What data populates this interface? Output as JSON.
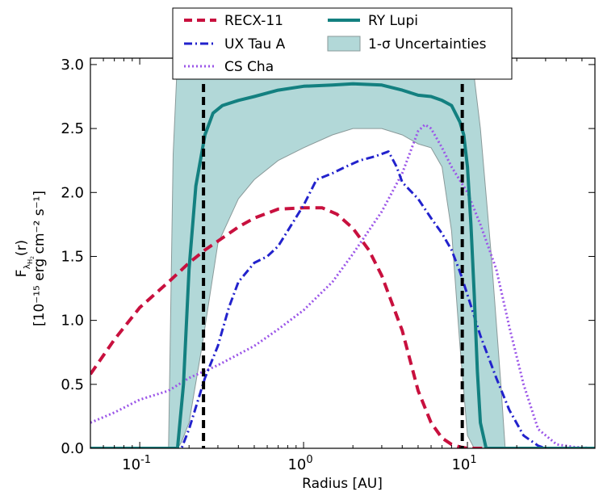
{
  "chart_data": {
    "type": "line",
    "xscale": "log",
    "xlim": [
      0.05,
      60
    ],
    "ylim": [
      0.0,
      3.05
    ],
    "xlabel": "Radius [AU]",
    "ylabel_line1": "F",
    "ylabel_sub": "λ",
    "ylabel_subsub": "H",
    "ylabel_subsubsub": "2",
    "ylabel_line1_tail": "(r)",
    "ylabel_line2": "[10⁻¹⁵ erg cm⁻² s⁻¹]",
    "xticks": [
      {
        "value": 0.1,
        "base": "10",
        "exp": "-1"
      },
      {
        "value": 1,
        "base": "10",
        "exp": "0"
      },
      {
        "value": 10,
        "base": "10",
        "exp": "1"
      }
    ],
    "yticks": [
      {
        "value": 0.0,
        "label": "0.0"
      },
      {
        "value": 0.5,
        "label": "0.5"
      },
      {
        "value": 1.0,
        "label": "1.0"
      },
      {
        "value": 1.5,
        "label": "1.5"
      },
      {
        "value": 2.0,
        "label": "2.0"
      },
      {
        "value": 2.5,
        "label": "2.5"
      },
      {
        "value": 3.0,
        "label": "3.0"
      }
    ],
    "band": {
      "name": "1-σ Uncertainties",
      "color": "#b2d8d8",
      "edge_color": "#8a9a9a",
      "x": [
        0.15,
        0.16,
        0.17,
        0.18,
        0.2,
        0.24,
        0.3,
        0.4,
        0.5,
        0.7,
        1.0,
        1.5,
        2.0,
        3.0,
        4.0,
        5.0,
        6.0,
        7.0,
        8.0,
        9.0,
        10.0,
        11.0,
        12.0,
        14.0,
        16.0,
        17.0
      ],
      "upper": [
        0.0,
        2.3,
        3.05,
        3.05,
        3.05,
        3.05,
        3.05,
        3.05,
        3.05,
        3.05,
        3.05,
        3.05,
        3.05,
        3.05,
        3.05,
        3.05,
        3.05,
        3.05,
        3.05,
        3.05,
        3.05,
        2.9,
        2.5,
        1.5,
        0.5,
        0.0
      ],
      "lower": [
        0.0,
        0.0,
        0.0,
        0.05,
        0.2,
        0.8,
        1.6,
        1.95,
        2.1,
        2.25,
        2.35,
        2.45,
        2.5,
        2.5,
        2.45,
        2.38,
        2.35,
        2.2,
        1.7,
        0.8,
        0.1,
        0.0,
        0.0,
        0.0,
        0.0,
        0.0
      ]
    },
    "vlines": {
      "x": [
        0.245,
        9.3
      ],
      "color": "#000000"
    },
    "series": [
      {
        "name": "RECX-11",
        "color": "#c8103e",
        "style": "dashed",
        "x": [
          0.05,
          0.07,
          0.1,
          0.15,
          0.2,
          0.25,
          0.3,
          0.4,
          0.5,
          0.7,
          1.0,
          1.3,
          1.6,
          2.0,
          2.5,
          3.0,
          4.0,
          5.0,
          6.0,
          7.0,
          8.0,
          9.0,
          10.0,
          12.0,
          60.0
        ],
        "y": [
          0.58,
          0.85,
          1.1,
          1.3,
          1.45,
          1.55,
          1.62,
          1.73,
          1.8,
          1.87,
          1.88,
          1.88,
          1.83,
          1.72,
          1.55,
          1.35,
          0.92,
          0.45,
          0.2,
          0.08,
          0.03,
          0.01,
          0.0,
          0.0,
          0.0
        ]
      },
      {
        "name": "UX Tau A",
        "color": "#2222cc",
        "style": "dashdot",
        "x": [
          0.05,
          0.15,
          0.18,
          0.2,
          0.25,
          0.3,
          0.35,
          0.4,
          0.5,
          0.6,
          0.7,
          0.8,
          1.0,
          1.2,
          1.5,
          1.8,
          2.2,
          2.7,
          3.3,
          3.7,
          4.0,
          5.0,
          6.0,
          7.0,
          8.0,
          9.0,
          10.0,
          12.0,
          15.0,
          18.0,
          22.0,
          27.0,
          30.0,
          60.0
        ],
        "y": [
          0.0,
          0.0,
          0.0,
          0.15,
          0.55,
          0.8,
          1.1,
          1.3,
          1.45,
          1.5,
          1.58,
          1.7,
          1.9,
          2.1,
          2.15,
          2.2,
          2.25,
          2.28,
          2.32,
          2.2,
          2.08,
          1.95,
          1.8,
          1.68,
          1.55,
          1.38,
          1.2,
          0.88,
          0.55,
          0.3,
          0.1,
          0.02,
          0.0,
          0.0
        ]
      },
      {
        "name": "CS Cha",
        "color": "#9b55e8",
        "style": "dotted",
        "x": [
          0.05,
          0.07,
          0.1,
          0.15,
          0.2,
          0.3,
          0.5,
          0.7,
          1.0,
          1.5,
          2.0,
          3.0,
          4.0,
          5.0,
          5.5,
          6.0,
          7.0,
          8.0,
          10.0,
          12.0,
          15.0,
          18.0,
          22.0,
          27.0,
          35.0,
          45.0,
          60.0
        ],
        "y": [
          0.2,
          0.28,
          0.38,
          0.45,
          0.55,
          0.65,
          0.8,
          0.93,
          1.08,
          1.3,
          1.52,
          1.85,
          2.15,
          2.48,
          2.53,
          2.5,
          2.35,
          2.2,
          2.0,
          1.75,
          1.4,
          0.95,
          0.5,
          0.15,
          0.03,
          0.01,
          0.0
        ]
      },
      {
        "name": "RY Lupi",
        "color": "#138080",
        "style": "solid",
        "x": [
          0.05,
          0.17,
          0.185,
          0.2,
          0.22,
          0.25,
          0.28,
          0.32,
          0.4,
          0.5,
          0.7,
          1.0,
          1.5,
          2.0,
          3.0,
          4.0,
          5.0,
          6.0,
          7.0,
          8.0,
          9.0,
          9.5,
          10.0,
          10.5,
          11.0,
          11.5,
          12.0,
          13.0,
          60.0
        ],
        "y": [
          0.0,
          0.0,
          0.5,
          1.4,
          2.05,
          2.45,
          2.62,
          2.68,
          2.72,
          2.75,
          2.8,
          2.83,
          2.84,
          2.85,
          2.84,
          2.8,
          2.76,
          2.75,
          2.72,
          2.68,
          2.55,
          2.45,
          2.2,
          1.75,
          1.2,
          0.6,
          0.2,
          0.0,
          0.0
        ]
      }
    ],
    "legend": {
      "location": "top-center",
      "entries": [
        {
          "label": "RECX-11",
          "ref": "RECX-11"
        },
        {
          "label": "UX Tau A",
          "ref": "UX Tau A"
        },
        {
          "label": "CS Cha",
          "ref": "CS Cha"
        },
        {
          "label": "RY Lupi",
          "ref": "RY Lupi"
        },
        {
          "label": "1-σ Uncertainties",
          "ref": "band"
        }
      ]
    }
  }
}
